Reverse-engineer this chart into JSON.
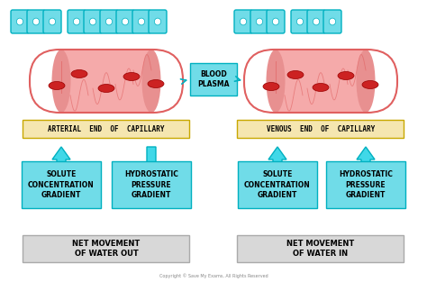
{
  "background_color": "#ffffff",
  "capillary_fill": "#f5aaaa",
  "capillary_stroke": "#e06060",
  "arrow_color": "#40d8e8",
  "arrow_edge": "#00b0c0",
  "box_cyan_fill": "#70dce8",
  "box_cyan_edge": "#00b0c0",
  "box_label_fill": "#f5e6b0",
  "box_label_edge": "#c8a800",
  "box_gray_fill": "#d8d8d8",
  "box_gray_edge": "#aaaaaa",
  "rbc_color": "#cc2222",
  "rbc_edge": "#990000",
  "cell_fill": "#70dce8",
  "cell_edge": "#00b0c0",
  "cell_inner": "#ffffff",
  "blood_plasma_label": "BLOOD\nPLASMA",
  "arterial_label": "ARTERIAL  END  OF  CAPILLARY",
  "venous_label": "VENOUS  END  OF  CAPILLARY",
  "solute_label": "SOLUTE\nCONCENTRATION\nGRADIENT",
  "hydrostatic_label": "HYDROSTATIC\nPRESSURE\nGRADIENT",
  "net_out_label": "NET MOVEMENT\nOF WATER OUT",
  "net_in_label": "NET MOVEMENT\nOF WATER IN",
  "copyright": "Copyright © Save My Exams, All Rights Reserved"
}
